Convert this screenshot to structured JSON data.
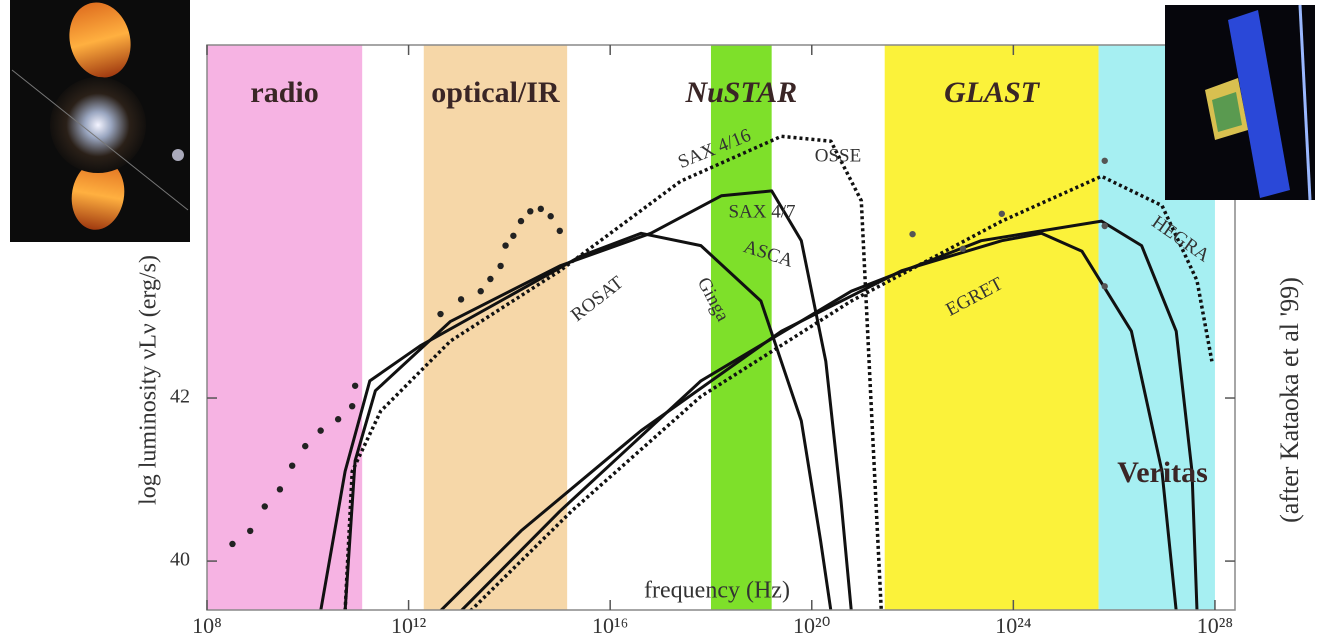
{
  "chart_data": {
    "type": "line",
    "xlabel": "frequency (Hz)",
    "ylabel": "log luminosity νLν (erg/s)",
    "credit": "(after Kataoka et al '99)",
    "xscale": "log",
    "xlim": [
      100000000.0,
      2.5e+28
    ],
    "ylim": [
      39.4,
      46.33
    ],
    "xticks": [
      {
        "value": 100000000.0,
        "label": "10⁸"
      },
      {
        "value": 1000000000000.0,
        "label": "10¹²"
      },
      {
        "value": 1e+16,
        "label": "10¹⁶"
      },
      {
        "value": 1e+20,
        "label": "10²⁰"
      },
      {
        "value": 1e+24,
        "label": "10²⁴"
      },
      {
        "value": 1e+28,
        "label": "10²⁸"
      }
    ],
    "yticks": [
      40,
      42
    ],
    "bands": [
      {
        "label": "radio",
        "color": "#f6b3e3",
        "range": [
          100000000.0,
          120000000000.0
        ]
      },
      {
        "label": "optical/IR",
        "color": "#f6d7a8",
        "range": [
          2000000000000.0,
          1400000000000000.0
        ]
      },
      {
        "label": "NuSTAR",
        "color": "#7ee02a",
        "range": [
          1e+18,
          1.6e+19
        ]
      },
      {
        "label": "GLAST",
        "color": "#fbf23a",
        "range": [
          2.8e+21,
          4.9e+25
        ]
      },
      {
        "label": "Veritas",
        "color": "#a6eff2",
        "range": [
          4.9e+25,
          1e+28
        ]
      }
    ],
    "annotations": [
      "SAX 4/16",
      "OSSE",
      "SAX 4/7",
      "ASCA",
      "ROSAT",
      "Ginga",
      "EGRET",
      "HEGRA"
    ],
    "series": [
      {
        "color": "#111111",
        "style": "solid",
        "x": [
          18000000000.0,
          55000000000.0,
          170000000000.0,
          1700000000000.0,
          67000000000000.0,
          2600000000000000.0,
          4.1e+16,
          6.3e+17,
          9.8e+18,
          6.2e+19,
          1.5e+20,
          2.4e+20
        ],
        "values": [
          39.39,
          41.1,
          42.21,
          42.64,
          43.19,
          43.74,
          44.02,
          43.87,
          43.19,
          41.72,
          40.25,
          39.39
        ]
      },
      {
        "color": "#111111",
        "style": "solid",
        "x": [
          55000000000.0,
          87000000000.0,
          220000000000.0,
          6800000000000.0,
          1000000000000000.0,
          6.4e+16,
          1.6e+18,
          1.6e+19,
          6.2e+19,
          1.9e+20,
          3.8e+20,
          6.1e+20
        ],
        "values": [
          39.39,
          41.23,
          42.09,
          42.94,
          43.62,
          44.02,
          44.48,
          44.54,
          43.93,
          42.45,
          40.74,
          39.39
        ]
      },
      {
        "color": "#111111",
        "style": "dotted",
        "x": [
          55000000000.0,
          76000000000.0,
          280000000000.0,
          6800000000000.0,
          1000000000000000.0,
          2.5e+17,
          2.5e+19,
          2.4e+20,
          9.6e+20,
          1.5e+21,
          2.4e+21
        ],
        "values": [
          39.39,
          41.1,
          41.84,
          42.7,
          43.56,
          44.66,
          45.21,
          45.15,
          44.42,
          41.96,
          39.39
        ]
      },
      {
        "color": "#111111",
        "style": "solid",
        "x": [
          4300000000000.0,
          170000000000000.0,
          4.1e+16,
          2.5e+19,
          6e+21,
          5.9e+23,
          3.6e+24,
          2.3e+25,
          2.2e+26,
          8.9e+26,
          1.7e+27
        ],
        "values": [
          39.39,
          40.37,
          41.6,
          42.82,
          43.56,
          43.93,
          44.02,
          43.8,
          42.82,
          41.1,
          39.39
        ]
      },
      {
        "color": "#111111",
        "style": "solid",
        "x": [
          11000000000000.0,
          1000000000000000.0,
          6.3e+17,
          6.1e+20,
          2.3e+23,
          5.6e+25,
          3.5e+26,
          1.7e+27,
          3.5e+27,
          4.4e+27
        ],
        "values": [
          39.39,
          40.61,
          42.21,
          43.31,
          43.93,
          44.17,
          43.87,
          42.82,
          41.1,
          39.39
        ]
      },
      {
        "color": "#111111",
        "style": "dotted",
        "x": [
          17000000000000.0,
          1700000000000000.0,
          6.3e+17,
          6.1e+20,
          5.9e+23,
          5.6e+25,
          8.9e+26,
          4.4e+27,
          8.7e+27
        ],
        "values": [
          39.39,
          40.61,
          42.02,
          43.19,
          44.17,
          44.72,
          44.36,
          43.44,
          42.45
        ]
      },
      {
        "color": "#222222",
        "style": "markers",
        "x": [
          320000000.0,
          720000000.0,
          1400000000.0,
          2800000000.0,
          4900000000.0,
          8900000000.0,
          18000000000.0,
          40000000000.0,
          76000000000.0,
          87000000000.0,
          4300000000000.0,
          11000000000000.0,
          27000000000000.0,
          42000000000000.0,
          67000000000000.0,
          84000000000000.0,
          120000000000000.0,
          170000000000000.0,
          260000000000000.0,
          420000000000000.0,
          660000000000000.0,
          1000000000000000.0
        ],
        "values": [
          40.21,
          40.37,
          40.67,
          40.88,
          41.17,
          41.41,
          41.6,
          41.74,
          41.9,
          42.15,
          43.03,
          43.21,
          43.31,
          43.46,
          43.62,
          43.87,
          43.99,
          44.17,
          44.29,
          44.32,
          44.23,
          44.05
        ]
      },
      {
        "color": "#555555",
        "style": "markers",
        "x": [
          1e+22,
          1e+23,
          5.9e+23,
          6.5e+25,
          6.5e+25,
          6.5e+25
        ],
        "values": [
          44.01,
          43.83,
          44.26,
          44.91,
          44.11,
          43.37
        ]
      }
    ]
  }
}
